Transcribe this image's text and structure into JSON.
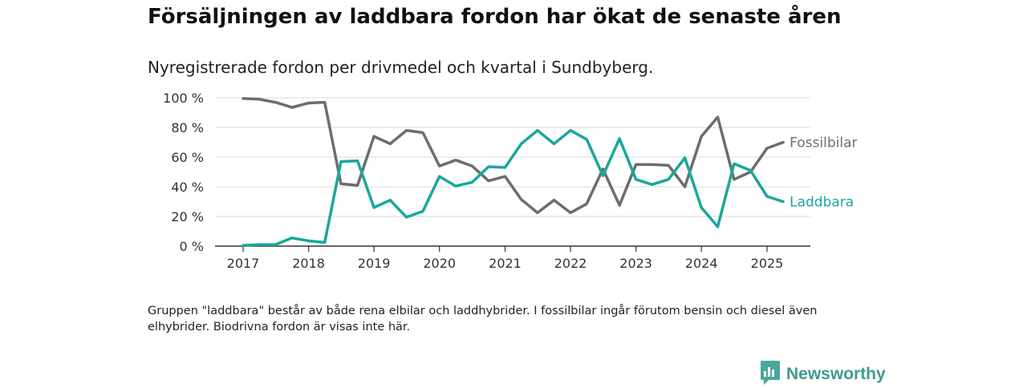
{
  "title": "Försäljningen av laddbara fordon har ökat de senaste åren",
  "subtitle": "Nyregistrerade fordon per drivmedel och kvartal i Sundbyberg.",
  "footnote": "Gruppen \"laddbara\" består av både rena elbilar och laddhybrider. I fossilbilar ingår förutom bensin och diesel även elhybrider. Biodrivna fordon är visas inte här.",
  "brand": {
    "name": "Newsworthy",
    "icon": "newsworthy-logo-icon"
  },
  "chart_data": {
    "type": "line",
    "title": "Försäljningen av laddbara fordon har ökat de senaste åren",
    "subtitle": "Nyregistrerade fordon per drivmedel och kvartal i Sundbyberg.",
    "xlabel": "",
    "ylabel": "",
    "ylim": [
      0,
      100
    ],
    "xlim": [
      "2017-01-01",
      "2025-07-01"
    ],
    "yticks": [
      0,
      20,
      40,
      60,
      80,
      100
    ],
    "ytick_labels": [
      "0 %",
      "20 %",
      "40 %",
      "60 %",
      "80 %",
      "100 %"
    ],
    "xticks": [
      "2017-01-01",
      "2018-01-01",
      "2019-01-01",
      "2020-01-01",
      "2021-01-01",
      "2022-01-01",
      "2023-01-01",
      "2024-01-01",
      "2025-01-01"
    ],
    "xtick_labels": [
      "2017",
      "2018",
      "2019",
      "2020",
      "2021",
      "2022",
      "2023",
      "2024",
      "2025"
    ],
    "grid": true,
    "legend": "direct labels at line ends",
    "x": [
      "2017-01-01",
      "2017-04-01",
      "2017-07-01",
      "2017-10-01",
      "2018-01-01",
      "2018-04-01",
      "2018-07-01",
      "2018-10-01",
      "2019-01-01",
      "2019-04-01",
      "2019-07-01",
      "2019-10-01",
      "2020-01-01",
      "2020-04-01",
      "2020-07-01",
      "2020-10-01",
      "2021-01-01",
      "2021-04-01",
      "2021-07-01",
      "2021-10-01",
      "2022-01-01",
      "2022-04-01",
      "2022-07-01",
      "2022-10-01",
      "2023-01-01",
      "2023-04-01",
      "2023-07-01",
      "2023-10-01",
      "2024-01-01",
      "2024-04-01",
      "2024-07-01",
      "2024-10-01",
      "2025-01-01",
      "2025-04-01"
    ],
    "series": [
      {
        "name": "Fossilbilar",
        "color": "#6d6c71",
        "values": [
          99.5,
          99,
          97,
          93.5,
          96.5,
          97,
          42,
          41,
          74,
          69,
          78,
          76.5,
          54,
          58,
          54,
          44,
          47,
          31.5,
          22.5,
          31,
          22.5,
          28.5,
          52,
          27.5,
          55,
          55,
          54.5,
          40,
          74,
          87,
          45,
          50,
          66,
          70
        ],
        "label_color": "#6d6c71"
      },
      {
        "name": "Laddbara",
        "color": "#1aa79b",
        "values": [
          0.5,
          1,
          1,
          5.5,
          3.5,
          2.5,
          57,
          57.5,
          26,
          31,
          19.5,
          23.5,
          47,
          40.5,
          43,
          53.5,
          53,
          69,
          78,
          69,
          78,
          72,
          47.5,
          72.5,
          45,
          41.5,
          45,
          59.5,
          26,
          13,
          55.5,
          51,
          33.5,
          30
        ],
        "label_color": "#1aa79b"
      }
    ]
  }
}
